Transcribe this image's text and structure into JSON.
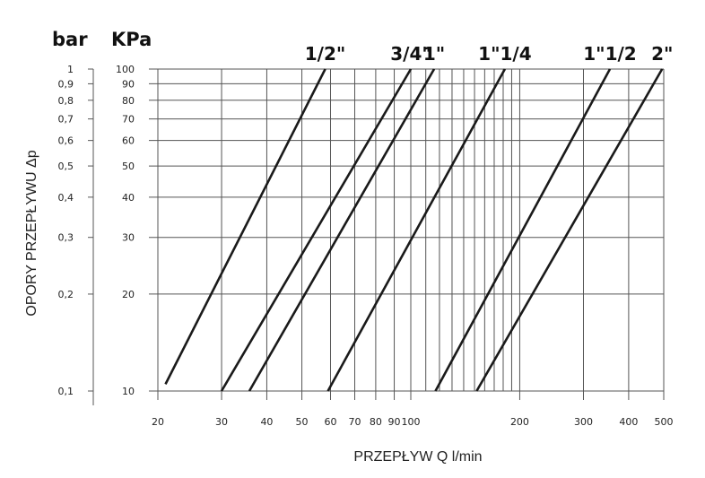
{
  "chart_data": {
    "type": "line",
    "xlabel": "PRZEPŁYW Q l/min",
    "ylabel": "OPORY PRZEPŁYWU Δp",
    "y_unit_bar": "bar",
    "y_unit_kpa": "KPa",
    "x_scale": "log",
    "y_scale": "log",
    "xlim": [
      20,
      500
    ],
    "ylim": [
      10,
      100
    ],
    "grid": true,
    "x_ticks": [
      20,
      30,
      40,
      50,
      60,
      70,
      80,
      90,
      100,
      200,
      300,
      400,
      500
    ],
    "x_tick_labels": [
      "20",
      "30",
      "40",
      "50",
      "60",
      "70",
      "80",
      "90",
      "100",
      "200",
      "300",
      "400",
      "500"
    ],
    "y_ticks_kpa": [
      10,
      20,
      30,
      40,
      50,
      60,
      70,
      80,
      90,
      100
    ],
    "y_tick_labels_kpa": [
      "10",
      "20",
      "30",
      "40",
      "50",
      "60",
      "70",
      "80",
      "90",
      "100"
    ],
    "y_tick_labels_bar": [
      "0,1",
      "0,2",
      "0,3",
      "0,4",
      "0,5",
      "0,6",
      "0,7",
      "0,8",
      "0,9",
      "1"
    ],
    "series": [
      {
        "name": "1/2\"",
        "x": [
          21,
          58
        ],
        "y": [
          10.5,
          100
        ]
      },
      {
        "name": "3/4\"",
        "x": [
          30,
          100
        ],
        "y": [
          10,
          100
        ]
      },
      {
        "name": "1\"",
        "x": [
          35.8,
          116
        ],
        "y": [
          10,
          100
        ]
      },
      {
        "name": "1\"1/4",
        "x": [
          59,
          182
        ],
        "y": [
          10,
          100
        ]
      },
      {
        "name": "1\"1/2",
        "x": [
          117,
          355
        ],
        "y": [
          10,
          100
        ]
      },
      {
        "name": "2\"",
        "x": [
          152,
          495
        ],
        "y": [
          10,
          100
        ]
      }
    ]
  }
}
